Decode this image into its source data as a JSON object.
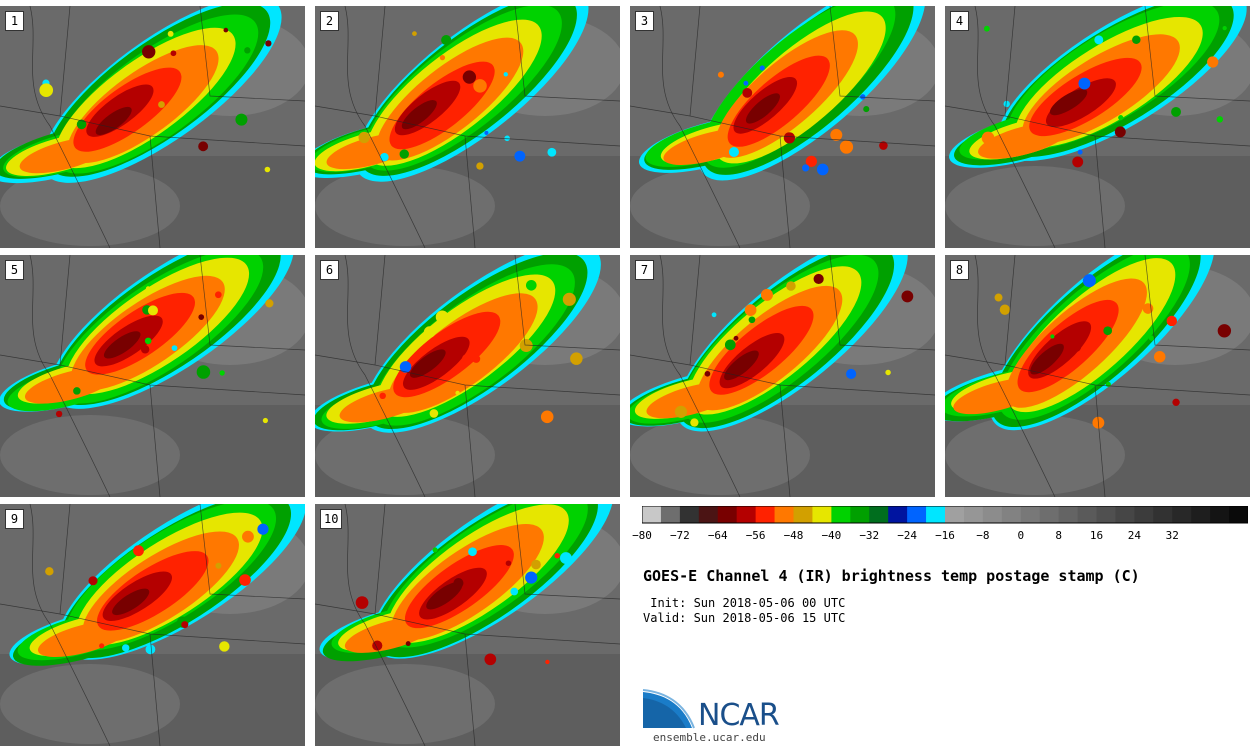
{
  "panels": [
    {
      "label": "1"
    },
    {
      "label": "2"
    },
    {
      "label": "3"
    },
    {
      "label": "4"
    },
    {
      "label": "5"
    },
    {
      "label": "6"
    },
    {
      "label": "7"
    },
    {
      "label": "8"
    },
    {
      "label": "9"
    },
    {
      "label": "10"
    }
  ],
  "colorbar": {
    "colors": [
      "#c8c8c8",
      "#6e6e6e",
      "#323232",
      "#4b1414",
      "#780000",
      "#b40000",
      "#ff2200",
      "#ff7800",
      "#d2a000",
      "#e6e600",
      "#00d200",
      "#00a000",
      "#006e1e",
      "#0014a0",
      "#0064ff",
      "#00e6ff",
      "#a0a0a0",
      "#969696",
      "#8c8c8c",
      "#828282",
      "#787878",
      "#6e6e6e",
      "#646464",
      "#5a5a5a",
      "#505050",
      "#464646",
      "#3c3c3c",
      "#323232",
      "#282828",
      "#1e1e1e",
      "#141414",
      "#0a0a0a"
    ],
    "tick_labels": [
      "−80",
      "−72",
      "−64",
      "−56",
      "−48",
      "−40",
      "−32",
      "−24",
      "−16",
      "−8",
      "0",
      "8",
      "16",
      "24",
      "32"
    ]
  },
  "title": "GOES-E Channel 4 (IR) brightness temp postage stamp (C)",
  "init": " Init: Sun 2018-05-06 00 UTC",
  "valid": "Valid: Sun 2018-05-06 15 UTC",
  "logo_text": "NCAR",
  "url": "ensemble.ucar.edu"
}
